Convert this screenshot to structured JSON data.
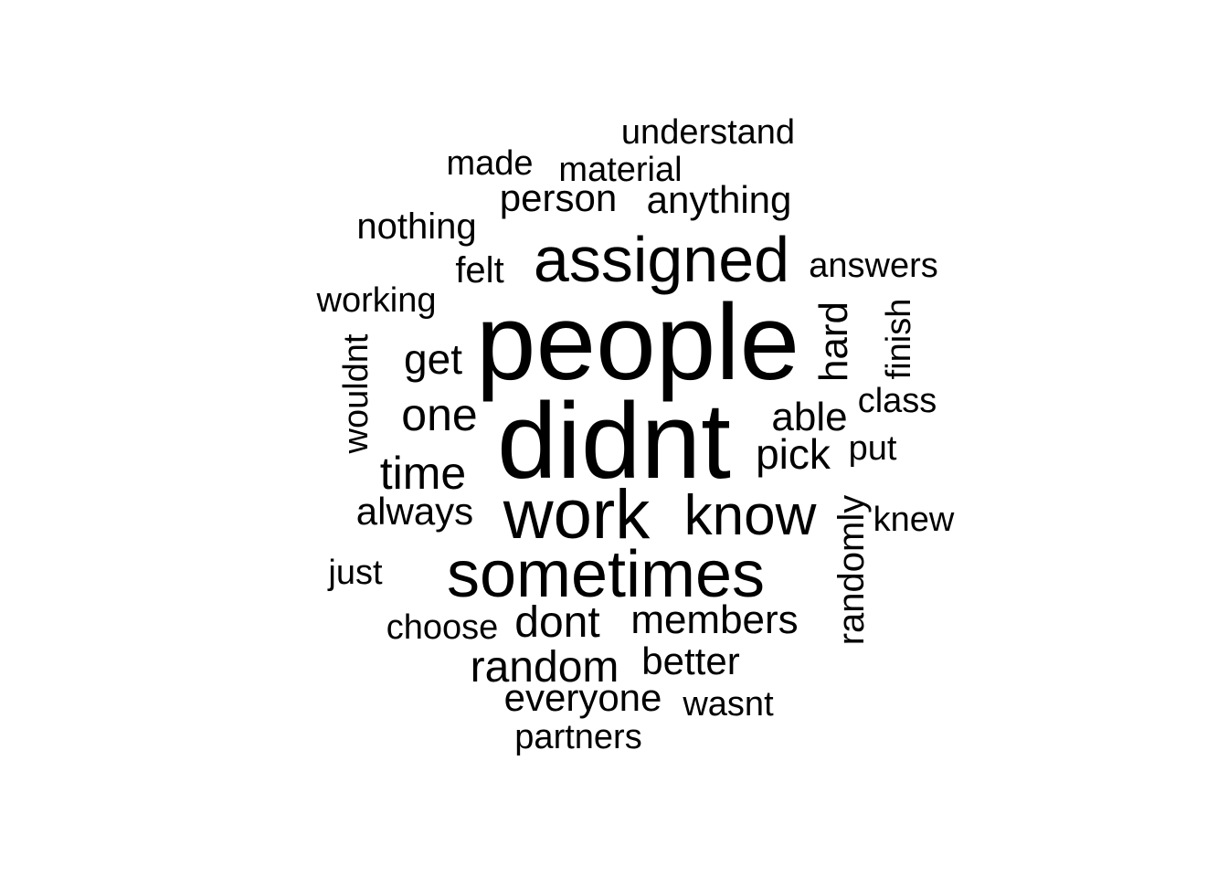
{
  "wordcloud": {
    "words": [
      {
        "text": "people",
        "vertical": false
      },
      {
        "text": "didnt",
        "vertical": false
      },
      {
        "text": "sometimes",
        "vertical": false
      },
      {
        "text": "work",
        "vertical": false
      },
      {
        "text": "assigned",
        "vertical": false
      },
      {
        "text": "know",
        "vertical": false
      },
      {
        "text": "one",
        "vertical": false
      },
      {
        "text": "time",
        "vertical": false
      },
      {
        "text": "random",
        "vertical": false
      },
      {
        "text": "dont",
        "vertical": false
      },
      {
        "text": "pick",
        "vertical": false
      },
      {
        "text": "get",
        "vertical": false
      },
      {
        "text": "members",
        "vertical": false
      },
      {
        "text": "able",
        "vertical": false
      },
      {
        "text": "hard",
        "vertical": true
      },
      {
        "text": "randomly",
        "vertical": true
      },
      {
        "text": "always",
        "vertical": false
      },
      {
        "text": "anything",
        "vertical": false
      },
      {
        "text": "person",
        "vertical": false
      },
      {
        "text": "better",
        "vertical": false
      },
      {
        "text": "everyone",
        "vertical": false
      },
      {
        "text": "wouldnt",
        "vertical": true
      },
      {
        "text": "nothing",
        "vertical": false
      },
      {
        "text": "felt",
        "vertical": false
      },
      {
        "text": "working",
        "vertical": false
      },
      {
        "text": "material",
        "vertical": false
      },
      {
        "text": "understand",
        "vertical": false
      },
      {
        "text": "answers",
        "vertical": false
      },
      {
        "text": "finish",
        "vertical": true
      },
      {
        "text": "class",
        "vertical": false
      },
      {
        "text": "put",
        "vertical": false
      },
      {
        "text": "knew",
        "vertical": false
      },
      {
        "text": "made",
        "vertical": false
      },
      {
        "text": "just",
        "vertical": false
      },
      {
        "text": "choose",
        "vertical": false
      },
      {
        "text": "wasnt",
        "vertical": false
      },
      {
        "text": "partners",
        "vertical": false
      }
    ]
  }
}
